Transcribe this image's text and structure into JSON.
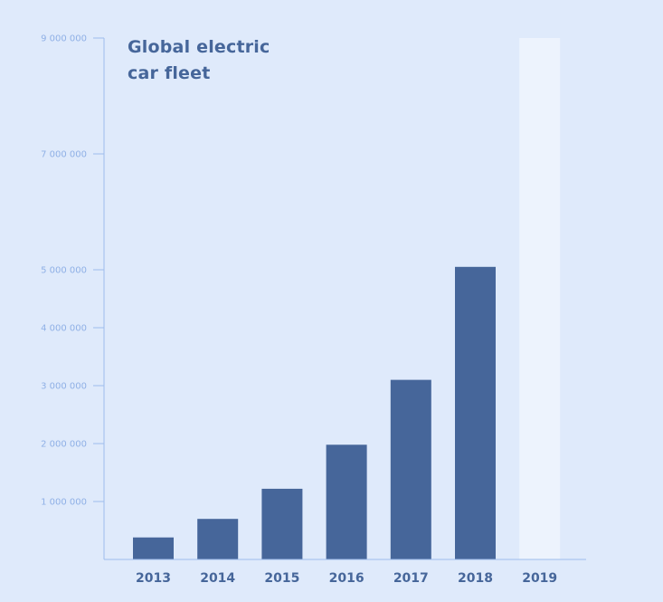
{
  "chart_data": {
    "type": "bar",
    "title_lines": [
      "Global electric",
      "car fleet"
    ],
    "categories": [
      "2013",
      "2014",
      "2015",
      "2016",
      "2017",
      "2018",
      "2019"
    ],
    "values": [
      380000,
      700000,
      1220000,
      1980000,
      3100000,
      5050000,
      null
    ],
    "projected_category": "2019",
    "ylim": [
      0,
      9000000
    ],
    "yticks": [
      1000000,
      2000000,
      3000000,
      4000000,
      5000000,
      7000000,
      9000000
    ],
    "ytick_labels": [
      "1 000 000",
      "2 000 000",
      "3 000 000",
      "4 000 000",
      "5 000 000",
      "7 000 000",
      "9 000 000"
    ],
    "xlabel": "",
    "ylabel": "",
    "grid": false,
    "colors": {
      "background": "#dfeafb",
      "bar": "#46669a",
      "placeholder_bar": "#edf3fd",
      "axis": "#9dbcec",
      "tick_label": "#8fb0e6"
    }
  }
}
